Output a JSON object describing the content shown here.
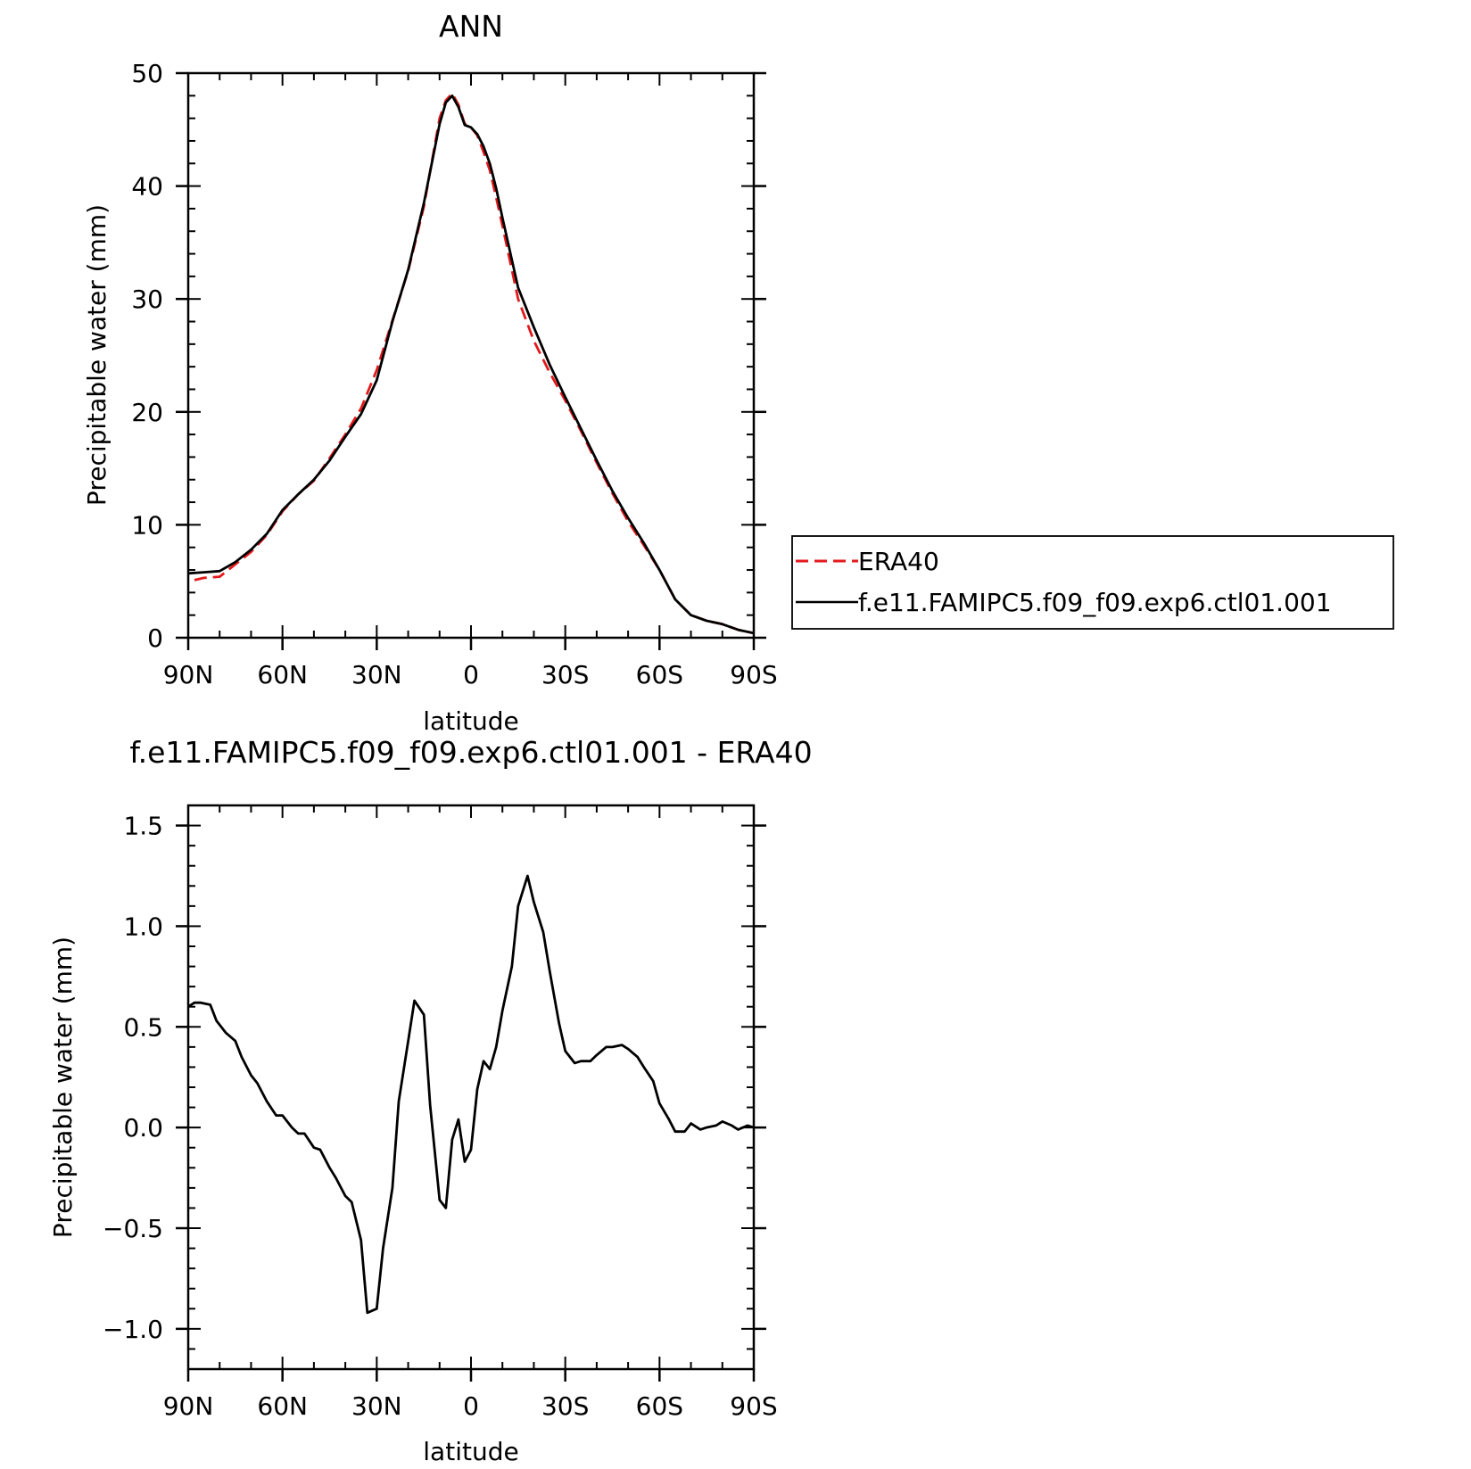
{
  "chart_data": [
    {
      "type": "line",
      "title": "ANN",
      "xlabel": "latitude",
      "ylabel": "Precipitable water (mm)",
      "xlim": [
        90,
        -90
      ],
      "ylim": [
        0,
        50
      ],
      "x_ticks": [
        {
          "value": 90,
          "label": "90N"
        },
        {
          "value": 60,
          "label": "60N"
        },
        {
          "value": 30,
          "label": "30N"
        },
        {
          "value": 0,
          "label": "0"
        },
        {
          "value": -30,
          "label": "30S"
        },
        {
          "value": -60,
          "label": "60S"
        },
        {
          "value": -90,
          "label": "90S"
        }
      ],
      "y_ticks": [
        {
          "value": 0,
          "label": "0"
        },
        {
          "value": 10,
          "label": "10"
        },
        {
          "value": 20,
          "label": "20"
        },
        {
          "value": 30,
          "label": "30"
        },
        {
          "value": 40,
          "label": "40"
        },
        {
          "value": 50,
          "label": "50"
        }
      ],
      "legend_position": "right",
      "series": [
        {
          "name": "ERA40",
          "color": "#e31a1c",
          "dash": "dashed",
          "x": [
            88,
            85,
            80,
            75,
            70,
            65,
            60,
            55,
            50,
            45,
            40,
            35,
            30,
            25,
            20,
            15,
            10,
            8,
            6,
            4,
            2,
            0,
            -2,
            -4,
            -6,
            -8,
            -10,
            -15,
            -20,
            -25,
            -30,
            -35,
            -40,
            -45,
            -50,
            -55,
            -60,
            -65,
            -70,
            -75,
            -80,
            -85,
            -90
          ],
          "y": [
            5.1,
            5.3,
            5.4,
            6.5,
            7.6,
            9.1,
            11.2,
            12.7,
            13.9,
            15.9,
            18.0,
            20.3,
            23.7,
            28.1,
            32.5,
            38.2,
            46.0,
            47.6,
            48.2,
            47.2,
            45.5,
            45.2,
            44.5,
            43.0,
            41.4,
            39.0,
            36.5,
            30.0,
            26.3,
            23.5,
            21.0,
            18.3,
            15.5,
            12.8,
            10.3,
            8.2,
            6.0,
            3.4,
            2.0,
            1.5,
            1.2,
            0.7,
            0.4
          ]
        },
        {
          "name": "f.e11.FAMIPC5.f09_f09.exp6.ctl01.001",
          "color": "#000000",
          "dash": "solid",
          "x": [
            90,
            85,
            80,
            75,
            70,
            65,
            60,
            55,
            50,
            45,
            40,
            35,
            30,
            25,
            20,
            15,
            10,
            8,
            6,
            4,
            2,
            0,
            -2,
            -4,
            -6,
            -8,
            -10,
            -15,
            -20,
            -25,
            -30,
            -35,
            -40,
            -45,
            -50,
            -55,
            -60,
            -65,
            -70,
            -75,
            -80,
            -85,
            -90
          ],
          "y": [
            5.7,
            5.8,
            5.9,
            6.7,
            7.8,
            9.2,
            11.3,
            12.7,
            14.0,
            15.7,
            17.8,
            19.8,
            22.8,
            28.0,
            32.6,
            38.5,
            45.5,
            47.4,
            48.0,
            47.0,
            45.4,
            45.2,
            44.6,
            43.5,
            42.0,
            39.8,
            37.2,
            31.0,
            27.5,
            24.2,
            21.3,
            18.5,
            15.7,
            13.0,
            10.6,
            8.4,
            6.0,
            3.4,
            2.0,
            1.5,
            1.2,
            0.7,
            0.4
          ]
        }
      ]
    },
    {
      "type": "line",
      "title": "f.e11.FAMIPC5.f09_f09.exp6.ctl01.001 - ERA40",
      "xlabel": "latitude",
      "ylabel": "Precipitable water (mm)",
      "xlim": [
        90,
        -90
      ],
      "ylim": [
        -1.2,
        1.6
      ],
      "x_ticks": [
        {
          "value": 90,
          "label": "90N"
        },
        {
          "value": 60,
          "label": "60N"
        },
        {
          "value": 30,
          "label": "30N"
        },
        {
          "value": 0,
          "label": "0"
        },
        {
          "value": -30,
          "label": "30S"
        },
        {
          "value": -60,
          "label": "60S"
        },
        {
          "value": -90,
          "label": "90S"
        }
      ],
      "y_ticks": [
        {
          "value": -1.0,
          "label": "−1.0"
        },
        {
          "value": -0.5,
          "label": "−0.5"
        },
        {
          "value": 0.0,
          "label": "0.0"
        },
        {
          "value": 0.5,
          "label": "0.5"
        },
        {
          "value": 1.0,
          "label": "1.0"
        },
        {
          "value": 1.5,
          "label": "1.5"
        }
      ],
      "series": [
        {
          "color": "#000000",
          "dash": "solid",
          "x": [
            90,
            88,
            86,
            83,
            81,
            78,
            75,
            73,
            70,
            68,
            65,
            62,
            60,
            57,
            55,
            53,
            50,
            48,
            45,
            43,
            40,
            38,
            35,
            33,
            30,
            28,
            25,
            23,
            20,
            18,
            15,
            13,
            10,
            8,
            6,
            4,
            2,
            0,
            -2,
            -4,
            -6,
            -8,
            -10,
            -13,
            -15,
            -18,
            -20,
            -23,
            -25,
            -28,
            -30,
            -33,
            -35,
            -38,
            -40,
            -43,
            -45,
            -48,
            -50,
            -53,
            -55,
            -58,
            -60,
            -63,
            -65,
            -68,
            -70,
            -73,
            -75,
            -78,
            -80,
            -83,
            -85,
            -88,
            -90
          ],
          "y": [
            0.6,
            0.62,
            0.62,
            0.61,
            0.53,
            0.47,
            0.43,
            0.35,
            0.26,
            0.22,
            0.13,
            0.06,
            0.06,
            0.0,
            -0.03,
            -0.03,
            -0.1,
            -0.11,
            -0.2,
            -0.25,
            -0.34,
            -0.37,
            -0.56,
            -0.92,
            -0.9,
            -0.6,
            -0.3,
            0.13,
            0.43,
            0.63,
            0.56,
            0.11,
            -0.36,
            -0.4,
            -0.06,
            0.04,
            -0.17,
            -0.11,
            0.19,
            0.33,
            0.29,
            0.4,
            0.58,
            0.8,
            1.1,
            1.25,
            1.12,
            0.97,
            0.78,
            0.52,
            0.38,
            0.32,
            0.33,
            0.33,
            0.36,
            0.4,
            0.4,
            0.41,
            0.39,
            0.35,
            0.3,
            0.23,
            0.12,
            0.04,
            -0.02,
            -0.02,
            0.02,
            -0.01,
            0.0,
            0.01,
            0.03,
            0.01,
            -0.01,
            0.01,
            0.0
          ]
        }
      ]
    }
  ]
}
